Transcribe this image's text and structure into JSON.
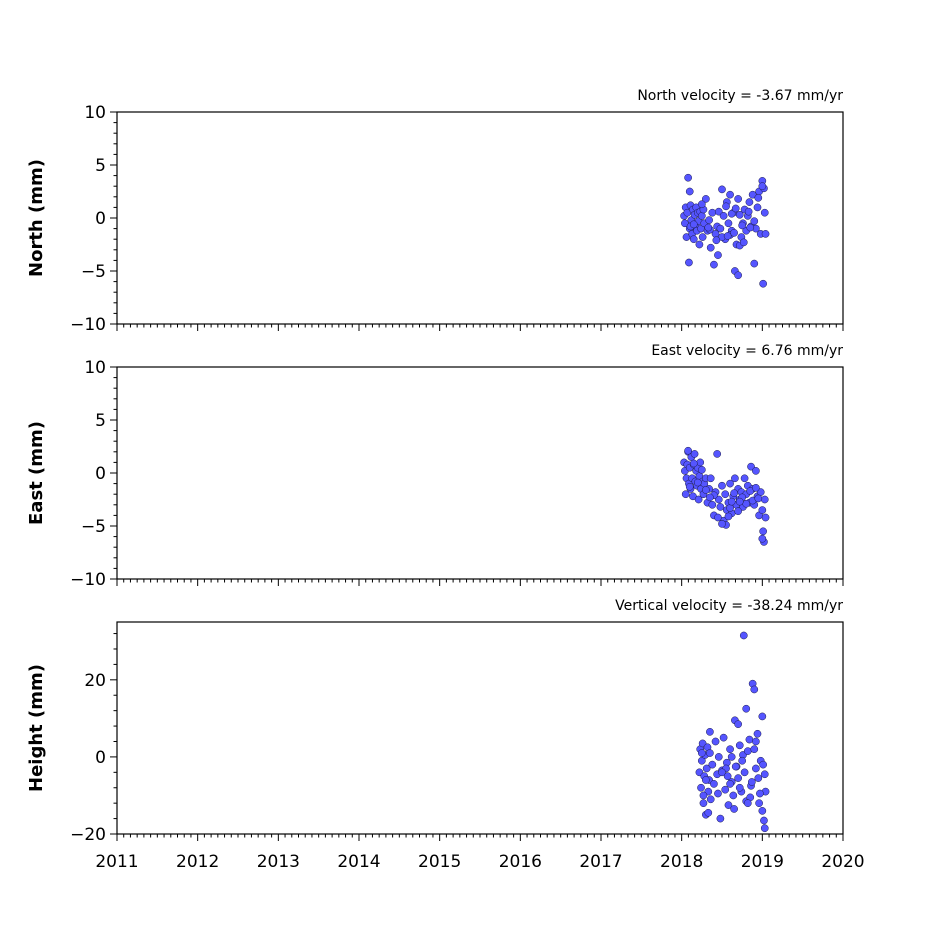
{
  "chart_data": [
    {
      "type": "scatter",
      "title": "North velocity = -3.67 mm/yr",
      "ylabel": "North (mm)",
      "xlim": [
        2011,
        2020
      ],
      "ylim": [
        -10,
        10
      ],
      "yticks": [
        -10,
        -5,
        0,
        5,
        10
      ],
      "ytick_labels": [
        "−10",
        "−5",
        "0",
        "5",
        "10"
      ],
      "xticks": [
        2011,
        2012,
        2013,
        2014,
        2015,
        2016,
        2017,
        2018,
        2019,
        2020
      ],
      "xtick_labels": [
        "",
        "",
        "",
        "",
        "",
        "",
        "",
        "",
        "",
        ""
      ],
      "color": "#5555ff",
      "grid": false,
      "series": [
        {
          "x": [
            2018.03,
            2018.04,
            2018.05,
            2018.06,
            2018.07,
            2018.08,
            2018.09,
            2018.1,
            2018.11,
            2018.12,
            2018.13,
            2018.14,
            2018.15,
            2018.16,
            2018.17,
            2018.18,
            2018.19,
            2018.2,
            2018.21,
            2018.22,
            2018.23,
            2018.24,
            2018.25,
            2018.26,
            2018.27,
            2018.28,
            2018.3,
            2018.32,
            2018.34,
            2018.36,
            2018.38,
            2018.4,
            2018.42,
            2018.44,
            2018.46,
            2018.48,
            2018.5,
            2018.52,
            2018.54,
            2018.56,
            2018.58,
            2018.6,
            2018.62,
            2018.64,
            2018.66,
            2018.68,
            2018.7,
            2018.72,
            2018.74,
            2018.76,
            2018.78,
            2018.8,
            2018.82,
            2018.84,
            2018.86,
            2018.88,
            2018.9,
            2018.92,
            2018.94,
            2018.96,
            2018.98,
            2019.0,
            2019.02,
            2019.03,
            2019.04,
            2018.1,
            2018.11,
            2018.45,
            2018.5,
            2018.7,
            2018.72,
            2018.9,
            2019.0,
            2018.6,
            2018.62,
            2018.77,
            2018.35,
            2018.43,
            2018.55,
            2018.65,
            2018.85,
            2018.15,
            2018.25,
            2018.33,
            2018.57,
            2018.67,
            2018.75,
            2018.83,
            2018.95,
            2019.01
          ],
          "y": [
            0.2,
            -0.5,
            1.0,
            -1.8,
            0.5,
            3.8,
            -4.2,
            -1.0,
            1.2,
            -0.2,
            -1.5,
            0.8,
            -2.0,
            0.3,
            -0.8,
            1.0,
            -1.2,
            0.5,
            -0.3,
            -2.5,
            0.6,
            -1.0,
            0.2,
            -1.8,
            0.8,
            -0.5,
            1.8,
            -1.2,
            -0.2,
            -2.8,
            0.5,
            -4.4,
            -1.5,
            -0.8,
            0.6,
            -1.0,
            2.7,
            0.2,
            -2.0,
            1.5,
            -0.5,
            2.2,
            -1.2,
            0.5,
            -5.0,
            -2.5,
            1.8,
            0.3,
            -1.8,
            -0.5,
            0.8,
            -1.2,
            0.2,
            1.5,
            -0.8,
            2.2,
            -4.3,
            -1.0,
            1.0,
            2.5,
            -1.5,
            3.5,
            2.8,
            0.5,
            -1.5,
            2.5,
            -0.8,
            -3.5,
            -1.8,
            -5.4,
            -2.6,
            -0.3,
            3.0,
            -1.6,
            0.4,
            -2.3,
            -1.1,
            -2.1,
            1.1,
            -1.4,
            -0.9,
            -0.6,
            1.3,
            -0.9,
            -1.7,
            0.9,
            -0.7,
            0.6,
            1.9,
            -6.2
          ]
        }
      ]
    },
    {
      "type": "scatter",
      "title": "East velocity = 6.76 mm/yr",
      "ylabel": "East (mm)",
      "xlim": [
        2011,
        2020
      ],
      "ylim": [
        -10,
        10
      ],
      "yticks": [
        -10,
        -5,
        0,
        5,
        10
      ],
      "ytick_labels": [
        "−10",
        "−5",
        "0",
        "5",
        "10"
      ],
      "xticks": [
        2011,
        2012,
        2013,
        2014,
        2015,
        2016,
        2017,
        2018,
        2019,
        2020
      ],
      "xtick_labels": [
        "",
        "",
        "",
        "",
        "",
        "",
        "",
        "",
        "",
        ""
      ],
      "color": "#5555ff",
      "grid": false,
      "series": [
        {
          "x": [
            2018.03,
            2018.04,
            2018.05,
            2018.06,
            2018.07,
            2018.08,
            2018.09,
            2018.1,
            2018.11,
            2018.12,
            2018.13,
            2018.14,
            2018.15,
            2018.16,
            2018.17,
            2018.18,
            2018.19,
            2018.2,
            2018.21,
            2018.22,
            2018.23,
            2018.24,
            2018.25,
            2018.26,
            2018.27,
            2018.28,
            2018.3,
            2018.32,
            2018.34,
            2018.36,
            2018.38,
            2018.4,
            2018.42,
            2018.44,
            2018.46,
            2018.48,
            2018.5,
            2018.52,
            2018.54,
            2018.56,
            2018.58,
            2018.6,
            2018.62,
            2018.64,
            2018.66,
            2018.68,
            2018.7,
            2018.72,
            2018.74,
            2018.76,
            2018.78,
            2018.8,
            2018.82,
            2018.84,
            2018.86,
            2018.88,
            2018.9,
            2018.92,
            2018.94,
            2018.96,
            2018.98,
            2019.0,
            2019.02,
            2019.03,
            2019.04,
            2018.08,
            2018.1,
            2018.45,
            2018.55,
            2018.6,
            2018.62,
            2018.85,
            2018.88,
            2019.0,
            2019.01,
            2018.2,
            2018.3,
            2018.4,
            2018.5,
            2018.65,
            2018.7,
            2018.75,
            2018.8,
            2018.95,
            2018.15,
            2018.35,
            2018.58,
            2018.72,
            2018.92
          ],
          "y": [
            1.0,
            0.2,
            -2.0,
            -0.5,
            0.8,
            2.0,
            -1.0,
            0.5,
            -1.5,
            1.5,
            -0.5,
            -2.2,
            0.8,
            1.8,
            -0.8,
            0.2,
            -1.2,
            0.5,
            -2.5,
            -0.3,
            1.0,
            -1.5,
            0.3,
            -0.8,
            -2.0,
            -1.0,
            -0.5,
            -2.8,
            -1.5,
            -0.5,
            -3.0,
            -4.0,
            -1.8,
            1.8,
            -2.5,
            -3.2,
            -1.2,
            -4.5,
            -2.0,
            -3.5,
            -2.8,
            -1.0,
            -3.8,
            -2.2,
            -0.5,
            -3.0,
            -1.5,
            -2.5,
            -1.8,
            -3.2,
            -0.5,
            -2.0,
            -1.2,
            -2.8,
            0.6,
            -1.5,
            -3.0,
            0.2,
            -2.2,
            -4.0,
            -1.8,
            -3.5,
            -6.5,
            -2.5,
            -4.2,
            2.1,
            -1.3,
            -4.2,
            -4.9,
            -3.3,
            -2.7,
            -1.7,
            -2.6,
            -6.2,
            -5.5,
            -0.9,
            -1.6,
            -2.1,
            -4.8,
            -1.9,
            -3.6,
            -2.3,
            -2.9,
            -2.4,
            0.9,
            -2.3,
            -4.1,
            -2.7,
            -1.4
          ]
        }
      ]
    },
    {
      "type": "scatter",
      "title": "Vertical velocity = -38.24 mm/yr",
      "ylabel": "Height (mm)",
      "xlim": [
        2011,
        2020
      ],
      "ylim": [
        -20,
        35
      ],
      "yticks": [
        -20,
        0,
        20
      ],
      "ytick_labels": [
        "−20",
        "0",
        "20"
      ],
      "xticks": [
        2011,
        2012,
        2013,
        2014,
        2015,
        2016,
        2017,
        2018,
        2019,
        2020
      ],
      "xtick_labels": [
        "2011",
        "2012",
        "2013",
        "2014",
        "2015",
        "2016",
        "2017",
        "2018",
        "2019",
        "2020"
      ],
      "color": "#5555ff",
      "grid": false,
      "series": [
        {
          "x": [
            2018.22,
            2018.23,
            2018.24,
            2018.25,
            2018.26,
            2018.27,
            2018.28,
            2018.29,
            2018.3,
            2018.31,
            2018.32,
            2018.33,
            2018.34,
            2018.35,
            2018.36,
            2018.38,
            2018.4,
            2018.42,
            2018.44,
            2018.46,
            2018.48,
            2018.5,
            2018.52,
            2018.54,
            2018.56,
            2018.58,
            2018.6,
            2018.62,
            2018.64,
            2018.66,
            2018.68,
            2018.7,
            2018.72,
            2018.74,
            2018.76,
            2018.77,
            2018.78,
            2018.8,
            2018.82,
            2018.84,
            2018.86,
            2018.88,
            2018.9,
            2018.92,
            2018.94,
            2018.96,
            2018.98,
            2019.0,
            2019.02,
            2019.03,
            2019.04,
            2018.25,
            2018.3,
            2018.35,
            2018.55,
            2018.6,
            2018.65,
            2018.7,
            2018.75,
            2018.8,
            2018.85,
            2018.9,
            2018.95,
            2019.0,
            2018.45,
            2018.5,
            2018.62,
            2018.72,
            2018.82,
            2018.92,
            2019.01,
            2018.27,
            2018.33,
            2018.57,
            2018.67,
            2018.87,
            2018.97,
            2019.03
          ],
          "y": [
            -4.0,
            2.0,
            -8.0,
            -1.0,
            3.5,
            -12.0,
            -5.0,
            0.5,
            -15.0,
            -3.0,
            2.5,
            -9.0,
            -6.0,
            1.0,
            -11.0,
            -2.0,
            -7.0,
            4.0,
            -4.5,
            0.0,
            -16.0,
            -3.5,
            5.0,
            -8.5,
            -1.5,
            -12.5,
            2.0,
            -6.5,
            -10.0,
            9.5,
            -2.5,
            -5.5,
            3.0,
            -9.0,
            0.5,
            31.5,
            -4.0,
            -11.5,
            1.5,
            4.5,
            -7.5,
            19.0,
            17.5,
            -3.0,
            6.0,
            -12.0,
            -1.0,
            -14.0,
            -16.5,
            -18.5,
            -9.0,
            1.0,
            -6.0,
            6.5,
            -3.0,
            -7.0,
            -13.5,
            8.5,
            -1.0,
            12.5,
            -10.5,
            2.0,
            -5.5,
            10.5,
            -9.5,
            -4.0,
            0.0,
            -8.0,
            -12.0,
            4.0,
            -2.0,
            -10.0,
            -14.5,
            -5.0,
            -2.5,
            -6.5,
            -9.5,
            -4.5
          ]
        }
      ]
    }
  ]
}
